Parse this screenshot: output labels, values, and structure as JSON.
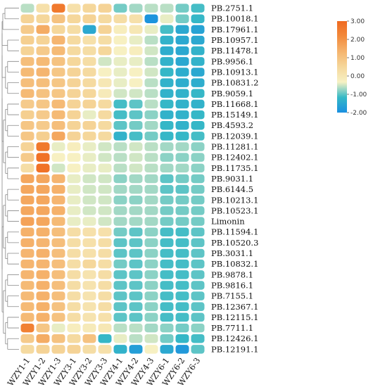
{
  "chart_data": {
    "type": "heatmap",
    "title": "",
    "xlabel": "",
    "ylabel": "",
    "columns": [
      "WZY1-1",
      "WZY1-2",
      "WZY1-3",
      "WZY3-1",
      "WZY3-2",
      "WZY3-3",
      "WZY4-1",
      "WZY4-2",
      "WZY4-3",
      "WZY6-1",
      "WZY6-2",
      "WZY6-3"
    ],
    "rows": [
      "PB.2751.1",
      "PB.10018.1",
      "PB.17961.1",
      "PB.10957.1",
      "PB.11478.1",
      "PB.9956.1",
      "PB.10913.1",
      "PB.10831.2",
      "PB.9059.1",
      "PB.11668.1",
      "PB.15149.1",
      "PB.4593.2",
      "PB.12039.1",
      "PB.11281.1",
      "PB.12402.1",
      "PB.11735.1",
      "PB.9031.1",
      "PB.6144.5",
      "PB.10213.1",
      "PB.10523.1",
      "Limonin",
      "PB.11594.1",
      "PB.10520.3",
      "PB.3031.1",
      "PB.10832.1",
      "PB.9878.1",
      "PB.9816.1",
      "PB.7155.1",
      "PB.12367.1",
      "PB.12115.1",
      "PB.7711.1",
      "PB.12426.1",
      "PB.12191.1"
    ],
    "values": [
      [
        -0.6,
        0.2,
        2.6,
        0.2,
        0.5,
        0.6,
        -0.9,
        -0.7,
        -0.6,
        -0.6,
        -0.9,
        -1.1
      ],
      [
        0.6,
        0.5,
        1.0,
        0.5,
        0.6,
        0.4,
        0.3,
        0.2,
        -1.9,
        -0.4,
        -0.9,
        -1.2
      ],
      [
        0.8,
        1.5,
        0.5,
        0.3,
        -1.5,
        0.6,
        -0.2,
        0.0,
        -0.4,
        -1.1,
        -1.5,
        -1.6
      ],
      [
        0.7,
        0.6,
        1.3,
        0.4,
        0.2,
        0.3,
        -0.3,
        -0.4,
        -0.6,
        -1.3,
        -1.5,
        -1.5
      ],
      [
        0.6,
        0.8,
        1.2,
        0.4,
        0.3,
        0.5,
        -0.3,
        -0.2,
        -0.5,
        -1.4,
        -1.5,
        -1.3
      ],
      [
        1.1,
        1.2,
        1.0,
        0.5,
        0.3,
        -0.5,
        -0.4,
        -0.4,
        -0.6,
        -1.3,
        -1.5,
        -1.3
      ],
      [
        1.2,
        1.3,
        0.9,
        0.6,
        0.4,
        -0.3,
        -0.4,
        -0.3,
        -0.5,
        -1.2,
        -1.4,
        -1.5
      ],
      [
        1.1,
        1.1,
        0.9,
        0.6,
        0.4,
        0.0,
        -0.4,
        -0.3,
        -0.6,
        -1.3,
        -1.4,
        -1.4
      ],
      [
        1.2,
        1.0,
        0.9,
        0.6,
        0.5,
        -0.1,
        -0.5,
        -0.5,
        -0.6,
        -1.3,
        -1.3,
        -1.2
      ],
      [
        0.8,
        0.9,
        1.2,
        0.6,
        0.6,
        0.4,
        -1.1,
        -1.0,
        -0.6,
        -1.2,
        -1.3,
        -1.3
      ],
      [
        0.7,
        0.8,
        1.2,
        0.6,
        -0.4,
        0.4,
        -1.1,
        -1.0,
        -0.8,
        -1.3,
        -1.3,
        -1.2
      ],
      [
        0.9,
        0.8,
        1.1,
        0.6,
        0.6,
        0.4,
        -1.0,
        -0.9,
        -0.7,
        -1.2,
        -1.3,
        -1.2
      ],
      [
        0.9,
        0.7,
        1.6,
        0.6,
        0.5,
        0.4,
        -1.3,
        -1.1,
        -0.9,
        -1.2,
        -1.2,
        -1.1
      ],
      [
        0.6,
        2.6,
        -0.4,
        -0.2,
        -0.4,
        -0.5,
        -0.6,
        -0.5,
        -0.6,
        -0.7,
        -0.7,
        -0.8
      ],
      [
        0.8,
        2.8,
        -0.3,
        -0.3,
        -0.4,
        -0.5,
        -0.6,
        -0.5,
        -0.6,
        -0.8,
        -0.8,
        -0.8
      ],
      [
        0.3,
        2.8,
        -0.5,
        -0.3,
        -0.4,
        -0.4,
        -0.6,
        -0.5,
        -0.6,
        -0.7,
        -0.7,
        -0.8
      ],
      [
        1.6,
        1.6,
        1.3,
        -0.4,
        -0.5,
        -0.5,
        -0.8,
        -0.7,
        -0.7,
        -1.0,
        -0.9,
        -0.9
      ],
      [
        1.6,
        1.6,
        1.4,
        -0.4,
        -0.5,
        -0.5,
        -0.7,
        -0.7,
        -0.7,
        -1.0,
        -1.0,
        -0.9
      ],
      [
        1.6,
        1.6,
        1.3,
        -0.4,
        -0.5,
        -0.5,
        -0.8,
        -0.8,
        -0.7,
        -0.9,
        -0.9,
        -0.9
      ],
      [
        1.6,
        1.6,
        1.4,
        -0.4,
        -0.5,
        -0.5,
        -0.7,
        -0.7,
        -0.7,
        -0.9,
        -0.9,
        -0.9
      ],
      [
        1.7,
        1.6,
        1.2,
        -0.4,
        -0.4,
        -0.5,
        -0.7,
        -0.7,
        -0.7,
        -0.9,
        -0.9,
        -0.9
      ],
      [
        1.4,
        1.4,
        1.1,
        0.3,
        0.2,
        0.2,
        -0.9,
        -1.0,
        -0.8,
        -1.1,
        -1.1,
        -1.0
      ],
      [
        1.4,
        1.3,
        1.1,
        0.3,
        0.2,
        0.3,
        -1.0,
        -1.0,
        -0.8,
        -1.1,
        -1.1,
        -1.0
      ],
      [
        1.3,
        1.4,
        1.1,
        0.3,
        0.2,
        0.3,
        -1.0,
        -1.0,
        -0.8,
        -1.1,
        -1.1,
        -1.0
      ],
      [
        1.3,
        1.3,
        1.1,
        0.3,
        0.5,
        0.3,
        -0.9,
        -1.0,
        -0.8,
        -1.1,
        -1.1,
        -1.0
      ],
      [
        1.3,
        1.4,
        1.1,
        0.3,
        0.1,
        0.3,
        -1.0,
        -1.0,
        -0.8,
        -1.1,
        -1.1,
        -1.0
      ],
      [
        1.2,
        1.4,
        1.1,
        0.3,
        0.1,
        0.3,
        -1.0,
        -1.0,
        -0.8,
        -1.1,
        -1.1,
        -1.0
      ],
      [
        1.2,
        1.4,
        1.1,
        0.3,
        0.1,
        0.3,
        -1.0,
        -1.0,
        -0.8,
        -1.1,
        -1.1,
        -1.0
      ],
      [
        1.2,
        1.4,
        1.0,
        0.3,
        0.1,
        0.3,
        -1.0,
        -1.0,
        -0.8,
        -1.1,
        -1.1,
        -1.0
      ],
      [
        1.2,
        1.4,
        1.0,
        0.3,
        0.1,
        0.2,
        -1.0,
        -1.0,
        -0.8,
        -1.1,
        -1.1,
        -1.0
      ],
      [
        2.4,
        0.9,
        -0.4,
        -0.2,
        -0.1,
        0.0,
        -0.6,
        -0.6,
        -0.7,
        -0.8,
        -0.9,
        -0.8
      ],
      [
        0.8,
        1.5,
        1.0,
        0.4,
        1.0,
        -1.2,
        -0.4,
        -0.6,
        -0.5,
        -0.9,
        -1.2,
        -1.1
      ],
      [
        0.4,
        0.6,
        0.6,
        0.6,
        0.3,
        0.2,
        -1.3,
        -1.7,
        -0.3,
        -1.5,
        -1.8,
        -1.0
      ]
    ],
    "colorbar": {
      "min": -2.0,
      "max": 3.0,
      "ticks": [
        "3.00",
        "2.00",
        "1.00",
        "0.00",
        "-1.00",
        "-2.00"
      ],
      "colors": [
        "#1a8fe0",
        "#36b9c6",
        "#f7f1c4",
        "#f5d79b",
        "#f5b46e",
        "#f28a3c",
        "#ef6a20"
      ]
    }
  }
}
